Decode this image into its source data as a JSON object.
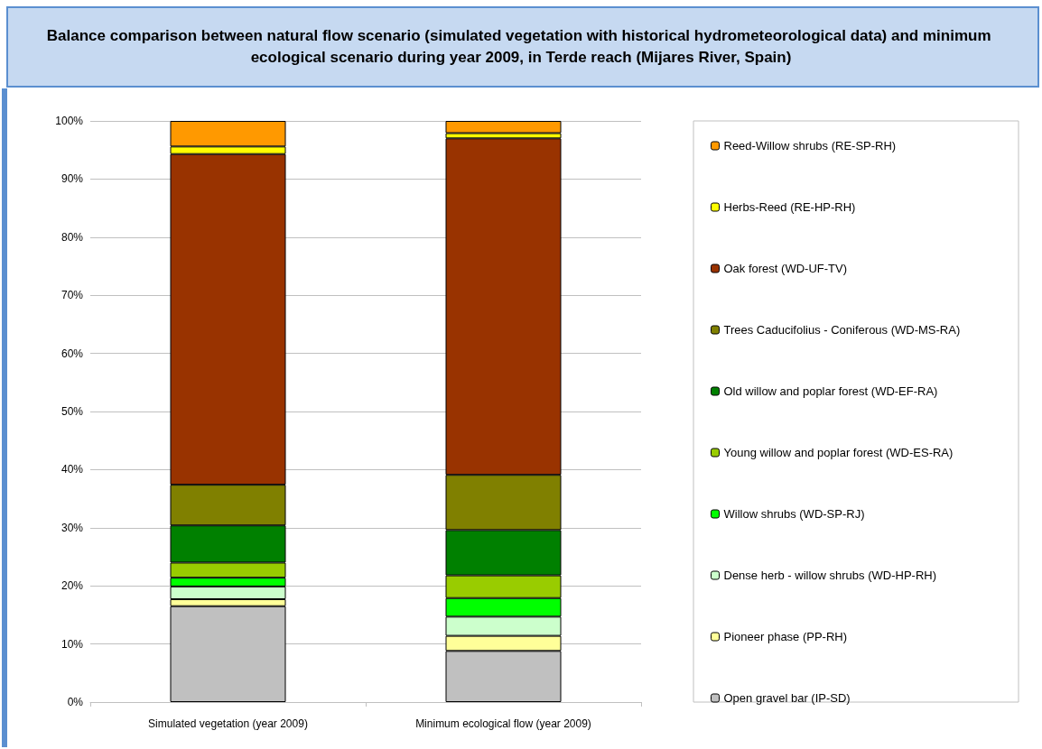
{
  "chart_data": {
    "type": "bar",
    "stacked": true,
    "title": "Balance comparison between natural flow scenario (simulated vegetation with historical hydrometeorological data) and minimum ecological scenario during year 2009, in Terde reach (Mijares River, Spain)",
    "categories": [
      "Simulated vegetation (year 2009)",
      "Minimum ecological flow (year 2009)"
    ],
    "series": [
      {
        "name": "Open gravel bar (IP-SD)",
        "color": "#c0c0c0",
        "values": [
          16.5,
          8.8
        ]
      },
      {
        "name": "Pioneer phase (PP-RH)",
        "color": "#ffff99",
        "values": [
          1.2,
          2.6
        ]
      },
      {
        "name": "Dense herb - willow shrubs (WD-HP-RH)",
        "color": "#ccffcc",
        "values": [
          2.2,
          3.3
        ]
      },
      {
        "name": "Willow shrubs (WD-SP-RJ)",
        "color": "#00ff00",
        "values": [
          1.5,
          3.2
        ]
      },
      {
        "name": "Young willow and poplar forest (WD-ES-RA)",
        "color": "#99cc00",
        "values": [
          2.6,
          3.9
        ]
      },
      {
        "name": "Old willow and poplar forest (WD-EF-RA)",
        "color": "#008000",
        "values": [
          6.4,
          7.8
        ]
      },
      {
        "name": "Trees Caducifolius - Coniferous (WD-MS-RA)",
        "color": "#808000",
        "values": [
          7.0,
          9.5
        ]
      },
      {
        "name": "Oak forest (WD-UF-TV)",
        "color": "#993300",
        "values": [
          56.9,
          57.9
        ]
      },
      {
        "name": "Herbs-Reed (RE-HP-RH)",
        "color": "#ffff00",
        "values": [
          1.3,
          0.9
        ]
      },
      {
        "name": "Reed-Willow shrubs (RE-SP-RH)",
        "color": "#ff9900",
        "values": [
          4.4,
          2.1
        ]
      }
    ],
    "ylim": [
      0,
      100
    ],
    "yticks": [
      {
        "value": 0,
        "label": "0%"
      },
      {
        "value": 10,
        "label": "10%"
      },
      {
        "value": 20,
        "label": "20%"
      },
      {
        "value": 30,
        "label": "30%"
      },
      {
        "value": 40,
        "label": "40%"
      },
      {
        "value": 50,
        "label": "50%"
      },
      {
        "value": 60,
        "label": "60%"
      },
      {
        "value": 70,
        "label": "70%"
      },
      {
        "value": 80,
        "label": "80%"
      },
      {
        "value": 90,
        "label": "90%"
      },
      {
        "value": 100,
        "label": "100%"
      }
    ],
    "grid": "y",
    "legend": "right"
  }
}
